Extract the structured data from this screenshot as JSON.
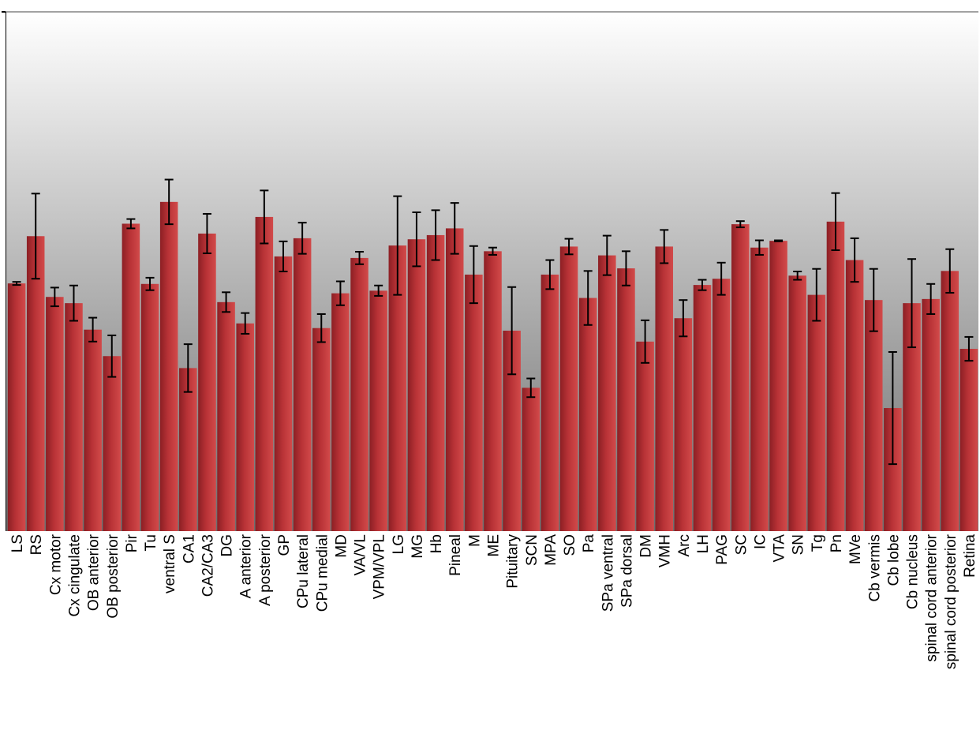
{
  "chart_data": {
    "type": "bar",
    "title": "",
    "xlabel": "",
    "ylabel": "",
    "grid": false,
    "legend": "none",
    "ylim": [
      0,
      100
    ],
    "colors": {
      "bar": "#b83236",
      "bar_light": "#d24a4a",
      "bar_dark": "#8c1f24",
      "error_bar": "#000000",
      "background_top": "#ffffff",
      "background_bottom": "#6e6e6e"
    },
    "categories": [
      "LS",
      "RS",
      "Cx motor",
      "Cx cingulate",
      "OB anterior",
      "OB posterior",
      "Pir",
      "Tu",
      "ventral S",
      "CA1",
      "CA2/CA3",
      "DG",
      "A anterior",
      "A posterior",
      "GP",
      "CPu lateral",
      "CPu medial",
      "MD",
      "VA/VL",
      "VPM/VPL",
      "LG",
      "MG",
      "Hb",
      "Pineal",
      "M",
      "ME",
      "Pituitary",
      "SCN",
      "MPA",
      "SO",
      "Pa",
      "SPa ventral",
      "SPa dorsal",
      "DM",
      "VMH",
      "Arc",
      "LH",
      "PAG",
      "SC",
      "IC",
      "VTA",
      "SN",
      "Tg",
      "Pn",
      "MVe",
      "Cb vermis",
      "Cb lobe",
      "Cb nucleus",
      "spinal cord anterior",
      "spinal cord posterior",
      "Retina"
    ],
    "series": [
      {
        "values": [
          47.7,
          56.8,
          45.1,
          43.9,
          38.8,
          33.7,
          59.2,
          47.6,
          63.4,
          31.4,
          57.3,
          44.1,
          40.0,
          60.5,
          52.9,
          56.4,
          39.1,
          45.8,
          52.6,
          46.3,
          55.0,
          56.2,
          57.0,
          58.3,
          49.4,
          53.9,
          38.6,
          27.6,
          49.4,
          54.8,
          44.9,
          53.1,
          50.6,
          36.5,
          54.8,
          41.0,
          47.4,
          48.6,
          59.1,
          54.6,
          55.9,
          49.2,
          45.5,
          59.6,
          52.2,
          44.5,
          23.7,
          43.9,
          44.7,
          50.1,
          35.1
        ],
        "errors": [
          0.3,
          8.2,
          1.8,
          3.4,
          2.3,
          4.0,
          0.9,
          1.2,
          4.3,
          4.6,
          3.8,
          1.9,
          2.0,
          5.1,
          2.9,
          3.0,
          2.7,
          2.3,
          1.2,
          1.0,
          9.5,
          5.2,
          4.8,
          4.9,
          5.5,
          0.7,
          8.4,
          1.8,
          2.8,
          1.5,
          5.2,
          3.8,
          3.3,
          4.1,
          3.2,
          3.5,
          1.0,
          3.1,
          0.6,
          1.4,
          0.1,
          0.8,
          5.0,
          5.5,
          4.2,
          6.0,
          10.8,
          8.5,
          2.9,
          4.2,
          2.3
        ]
      }
    ]
  }
}
